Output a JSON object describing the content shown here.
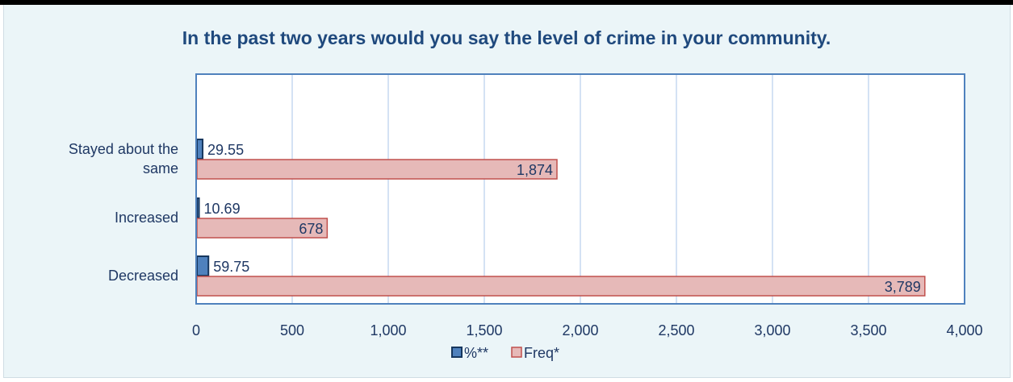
{
  "chart_data": {
    "type": "bar",
    "orientation": "horizontal",
    "title": "In the past two years would you say the level of crime in your community.",
    "categories": [
      "Stayed about the same",
      "Increased",
      "Decreased"
    ],
    "category_lines": [
      [
        "Stayed about the",
        "same"
      ],
      [
        "Increased"
      ],
      [
        "Decreased"
      ]
    ],
    "series": [
      {
        "name": "%**",
        "values": [
          29.55,
          10.69,
          59.75
        ],
        "labels": [
          "29.55",
          "10.69",
          "59.75"
        ],
        "color": "#4f81bd",
        "border": "#17375e"
      },
      {
        "name": "Freq*",
        "values": [
          1874,
          678,
          3789
        ],
        "labels": [
          "1,874",
          "678",
          "3,789"
        ],
        "color": "#e6b9b8",
        "border": "#c0504d"
      }
    ],
    "xlim": [
      0,
      4000
    ],
    "xticks": [
      0,
      500,
      1000,
      1500,
      2000,
      2500,
      3000,
      3500,
      4000
    ],
    "xtick_labels": [
      "0",
      "500",
      "1,000",
      "1,500",
      "2,000",
      "2,500",
      "3,000",
      "3,500",
      "4,000"
    ],
    "grid": true,
    "legend": "bottom",
    "colors": {
      "background": "#ebf5f8",
      "plot_background": "#ffffff",
      "plot_border": "#4f81bd",
      "gridline": "#c6d9f1",
      "text": "#1f3864"
    }
  }
}
